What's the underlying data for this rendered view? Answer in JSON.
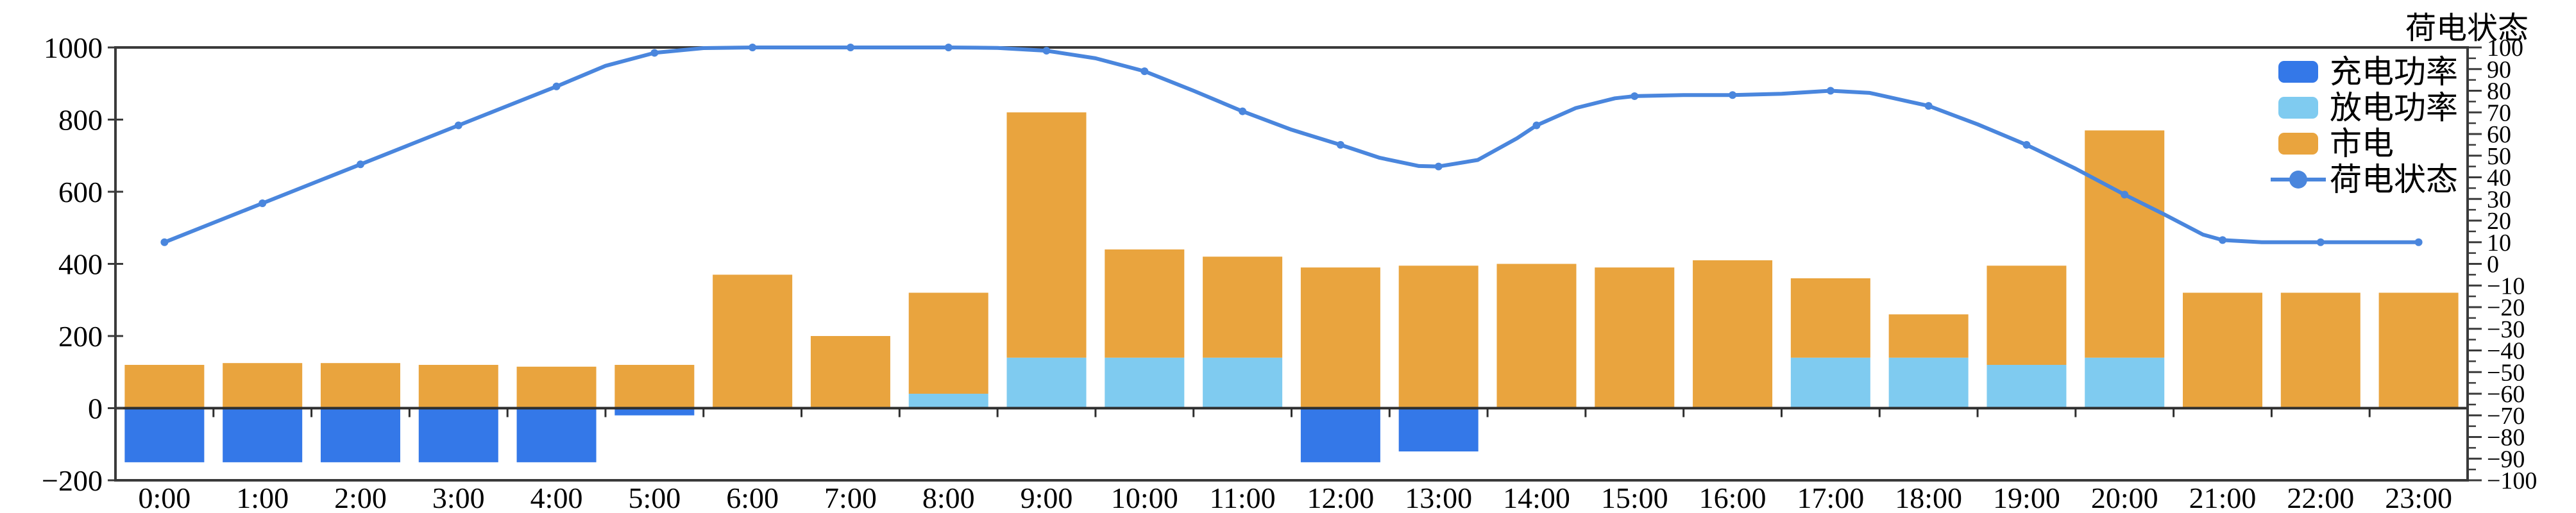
{
  "chart_data": {
    "type": "bar+line",
    "bar_mode": "stacked",
    "grid": false,
    "categories": [
      "0:00",
      "1:00",
      "2:00",
      "3:00",
      "4:00",
      "5:00",
      "6:00",
      "7:00",
      "8:00",
      "9:00",
      "10:00",
      "11:00",
      "12:00",
      "13:00",
      "14:00",
      "15:00",
      "16:00",
      "17:00",
      "18:00",
      "19:00",
      "20:00",
      "21:00",
      "22:00",
      "23:00"
    ],
    "series": [
      {
        "name": "充电功率",
        "type": "bar",
        "color": "#3478e8",
        "values": [
          -150,
          -150,
          -150,
          -150,
          -150,
          -20,
          0,
          0,
          0,
          0,
          0,
          0,
          -150,
          -120,
          0,
          0,
          0,
          0,
          0,
          0,
          0,
          0,
          0,
          0
        ]
      },
      {
        "name": "放电功率",
        "type": "bar",
        "color": "#7fcbf0",
        "values": [
          0,
          0,
          0,
          0,
          0,
          0,
          0,
          0,
          40,
          140,
          140,
          140,
          0,
          0,
          0,
          0,
          0,
          140,
          140,
          120,
          140,
          0,
          0,
          0
        ]
      },
      {
        "name": "市电",
        "type": "bar",
        "color": "#e9a43e",
        "values": [
          120,
          125,
          125,
          120,
          115,
          120,
          370,
          200,
          280,
          680,
          300,
          280,
          390,
          395,
          400,
          390,
          410,
          220,
          120,
          275,
          630,
          320,
          320,
          320
        ]
      },
      {
        "name": "荷电状态",
        "type": "line",
        "axis": "right",
        "color": "#4a86dd",
        "points": [
          [
            0,
            10
          ],
          [
            0.5,
            19
          ],
          [
            1,
            28
          ],
          [
            1.5,
            37
          ],
          [
            2,
            46
          ],
          [
            2.5,
            55
          ],
          [
            3,
            64
          ],
          [
            3.5,
            73
          ],
          [
            4,
            82
          ],
          [
            4.5,
            91.5
          ],
          [
            5,
            97.5
          ],
          [
            5.5,
            99.7
          ],
          [
            6,
            100
          ],
          [
            7,
            100
          ],
          [
            8,
            100
          ],
          [
            8.5,
            99.8
          ],
          [
            9,
            98.5
          ],
          [
            9.5,
            95
          ],
          [
            10,
            89
          ],
          [
            10.5,
            80
          ],
          [
            11,
            70.5
          ],
          [
            11.5,
            62
          ],
          [
            12,
            55
          ],
          [
            12.4,
            49
          ],
          [
            12.8,
            45.2
          ],
          [
            13,
            45
          ],
          [
            13.4,
            48
          ],
          [
            13.8,
            58
          ],
          [
            14,
            64
          ],
          [
            14.4,
            72
          ],
          [
            14.8,
            76.5
          ],
          [
            15,
            77.5
          ],
          [
            15.5,
            78
          ],
          [
            16,
            78
          ],
          [
            16.5,
            78.6
          ],
          [
            17,
            80
          ],
          [
            17.4,
            79
          ],
          [
            17.8,
            75
          ],
          [
            18,
            73
          ],
          [
            18.5,
            64.5
          ],
          [
            19,
            55
          ],
          [
            19.5,
            44
          ],
          [
            20,
            32
          ],
          [
            20.4,
            23
          ],
          [
            20.8,
            13.5
          ],
          [
            21,
            11
          ],
          [
            21.4,
            10
          ],
          [
            22,
            10
          ],
          [
            22.5,
            10
          ],
          [
            23,
            10
          ]
        ]
      }
    ],
    "left_axis": {
      "min": -200,
      "max": 1000,
      "tick_values": [
        1000,
        800,
        600,
        400,
        200,
        0,
        -200
      ],
      "tick_labels": [
        "1000",
        "800",
        "600",
        "400",
        "200",
        "0",
        "−200"
      ]
    },
    "right_axis": {
      "min": -100,
      "max": 100,
      "major_step": 10,
      "minor_step": 5,
      "title": "荷电状态",
      "tick_labels": [
        "100",
        "90",
        "80",
        "70",
        "60",
        "50",
        "40",
        "30",
        "20",
        "10",
        "0",
        "−10",
        "−20",
        "−30",
        "−40",
        "−50",
        "−60",
        "−70",
        "−80",
        "−90",
        "−100"
      ]
    },
    "x_axis": {
      "tick_labels": [
        "0:00",
        "1:00",
        "2:00",
        "3:00",
        "4:00",
        "5:00",
        "6:00",
        "7:00",
        "8:00",
        "9:00",
        "10:00",
        "11:00",
        "12:00",
        "13:00",
        "14:00",
        "15:00",
        "16:00",
        "17:00",
        "18:00",
        "19:00",
        "20:00",
        "21:00",
        "22:00",
        "23:00"
      ]
    },
    "legend": {
      "position": "upper-right",
      "entries": [
        {
          "label": "充电功率",
          "marker": "rect",
          "color": "#3478e8"
        },
        {
          "label": "放电功率",
          "marker": "rect",
          "color": "#7fcbf0"
        },
        {
          "label": "市电",
          "marker": "rect",
          "color": "#e9a43e"
        },
        {
          "label": "荷电状态",
          "marker": "line-dot",
          "color": "#4a86dd"
        }
      ]
    },
    "colors": {
      "spine": "#3a3a3a",
      "zero_line": "#2e2e2e",
      "text": "#000000",
      "background": "#ffffff"
    }
  }
}
